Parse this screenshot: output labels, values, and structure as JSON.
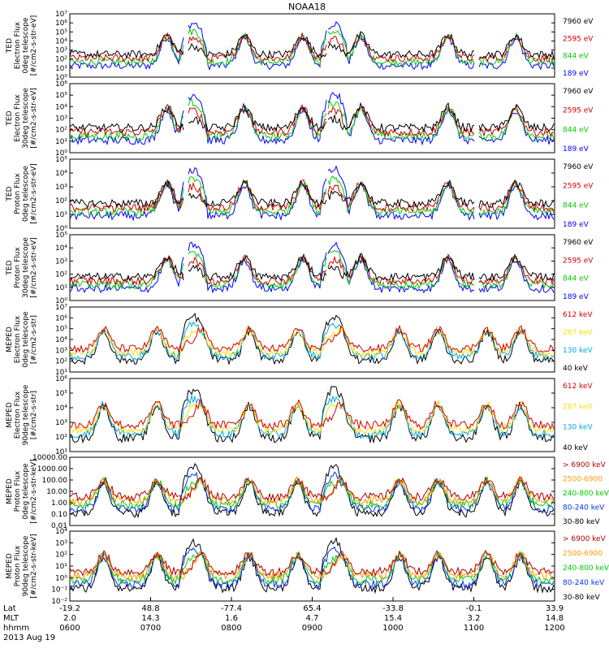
{
  "title": "NOAA18",
  "chart_data": {
    "type": "line",
    "title": "NOAA18",
    "date_label": "2013 Aug 19",
    "time_range": [
      "0600",
      "1200"
    ],
    "x_axis": {
      "row_labels": [
        "Lat",
        "MLT",
        "hhmm"
      ],
      "ticks": [
        {
          "lat": "-19.2",
          "mlt": "2.0",
          "hhmm": "0600"
        },
        {
          "lat": "48.8",
          "mlt": "14.3",
          "hhmm": "0700"
        },
        {
          "lat": "-77.4",
          "mlt": "1.6",
          "hhmm": "0800"
        },
        {
          "lat": "65.4",
          "mlt": "4.7",
          "hhmm": "0900"
        },
        {
          "lat": "-33.8",
          "mlt": "15.4",
          "hhmm": "1000"
        },
        {
          "lat": "-0.1",
          "mlt": "3.2",
          "hhmm": "1100"
        },
        {
          "lat": "33.9",
          "mlt": "14.8",
          "hhmm": "1200"
        }
      ]
    },
    "panels": [
      {
        "ylabel": [
          "TED",
          "Electron Flux",
          "0deg telescope",
          "[#/cm2-s-str-eV]"
        ],
        "scale": "log",
        "ylim": [
          1,
          10000000
        ],
        "ytick_labels": [
          "10⁰",
          "10¹",
          "10²",
          "10³",
          "10⁴",
          "10⁵",
          "10⁶",
          "10⁷"
        ],
        "legend": [
          {
            "label": "7960 eV",
            "color": "#000000"
          },
          {
            "label": "2595 eV",
            "color": "#d40000"
          },
          {
            "label": "844 eV",
            "color": "#00cc00"
          },
          {
            "label": "189 eV",
            "color": "#0000ff"
          }
        ]
      },
      {
        "ylabel": [
          "TED",
          "Electron Flux",
          "30deg telescope",
          "[#/cm2-s-str-eV]"
        ],
        "scale": "log",
        "ylim": [
          1,
          1000000
        ],
        "ytick_labels": [
          "10⁰",
          "10¹",
          "10²",
          "10³",
          "10⁴",
          "10⁵",
          "10⁶"
        ],
        "legend": [
          {
            "label": "7960 eV",
            "color": "#000000"
          },
          {
            "label": "2595 eV",
            "color": "#d40000"
          },
          {
            "label": "844 eV",
            "color": "#00cc00"
          },
          {
            "label": "189 eV",
            "color": "#0000ff"
          }
        ]
      },
      {
        "ylabel": [
          "TED",
          "Proton Flux",
          "0deg telescope",
          "[#/cm2-s-str-eV]"
        ],
        "scale": "log",
        "ylim": [
          1,
          100000
        ],
        "ytick_labels": [
          "10⁰",
          "10¹",
          "10²",
          "10³",
          "10⁴",
          "10⁵"
        ],
        "legend": [
          {
            "label": "7960 eV",
            "color": "#000000"
          },
          {
            "label": "2595 eV",
            "color": "#d40000"
          },
          {
            "label": "844 eV",
            "color": "#00cc00"
          },
          {
            "label": "189 eV",
            "color": "#0000ff"
          }
        ]
      },
      {
        "ylabel": [
          "TED",
          "Proton Flux",
          "30deg telescope",
          "[#/cm2-s-str-eV]"
        ],
        "scale": "log",
        "ylim": [
          1,
          100000
        ],
        "ytick_labels": [
          "10⁰",
          "10¹",
          "10²",
          "10³",
          "10⁴",
          "10⁵"
        ],
        "legend": [
          {
            "label": "7960 eV",
            "color": "#000000"
          },
          {
            "label": "2595 eV",
            "color": "#d40000"
          },
          {
            "label": "844 eV",
            "color": "#00cc00"
          },
          {
            "label": "189 eV",
            "color": "#0000ff"
          }
        ]
      },
      {
        "ylabel": [
          "MEPED",
          "Electron Flux",
          "0deg telescope",
          "[#/cm2-s-str]"
        ],
        "scale": "log",
        "ylim": [
          10,
          10000000
        ],
        "ytick_labels": [
          "10¹",
          "10²",
          "10³",
          "10⁴",
          "10⁵",
          "10⁶",
          "10⁷"
        ],
        "legend": [
          {
            "label": "612 keV",
            "color": "#d40000"
          },
          {
            "label": "287 keV",
            "color": "#ffdd00"
          },
          {
            "label": "130 keV",
            "color": "#00aadd"
          },
          {
            "label": "40 keV",
            "color": "#000000"
          }
        ]
      },
      {
        "ylabel": [
          "MEPED",
          "Electron Flux",
          "90deg telescope",
          "[#/cm2-s-str]"
        ],
        "scale": "log",
        "ylim": [
          10,
          1000000
        ],
        "ytick_labels": [
          "10¹",
          "10²",
          "10³",
          "10⁴",
          "10⁵",
          "10⁶"
        ],
        "legend": [
          {
            "label": "612 keV",
            "color": "#d40000"
          },
          {
            "label": "287 keV",
            "color": "#ffdd00"
          },
          {
            "label": "130 keV",
            "color": "#00aadd"
          },
          {
            "label": "40 keV",
            "color": "#000000"
          }
        ]
      },
      {
        "ylabel": [
          "MEPED",
          "Proton Flux",
          "0deg telescope",
          "[#/cm2-s-str-keV]"
        ],
        "scale": "log",
        "ylim": [
          0.01,
          10000
        ],
        "ytick_labels": [
          "0.01",
          "0.10",
          "1.00",
          "10.00",
          "100.00",
          "1000.00",
          "10000.00"
        ],
        "legend": [
          {
            "label": "> 6900 keV",
            "color": "#b00000"
          },
          {
            "label": "2500-6900",
            "color": "#ff9900"
          },
          {
            "label": "240-800 keV",
            "color": "#00cc00"
          },
          {
            "label": "80-240 keV",
            "color": "#0033ff"
          },
          {
            "label": "30-80 keV",
            "color": "#000000"
          }
        ]
      },
      {
        "ylabel": [
          "MEPED",
          "Proton Flux",
          "90deg telescope",
          "[#/cm2-s-str-keV]"
        ],
        "scale": "log",
        "ylim": [
          0.01,
          10000
        ],
        "ytick_labels": [
          "10⁻²",
          "10⁻¹",
          "10⁰",
          "10¹",
          "10²",
          "10³",
          "10⁴"
        ],
        "legend": [
          {
            "label": "> 6900 keV",
            "color": "#b00000"
          },
          {
            "label": "2500-6900",
            "color": "#ff9900"
          },
          {
            "label": "240-800 keV",
            "color": "#00cc00"
          },
          {
            "label": "80-240 keV",
            "color": "#0033ff"
          },
          {
            "label": "30-80 keV",
            "color": "#000000"
          }
        ]
      }
    ]
  }
}
